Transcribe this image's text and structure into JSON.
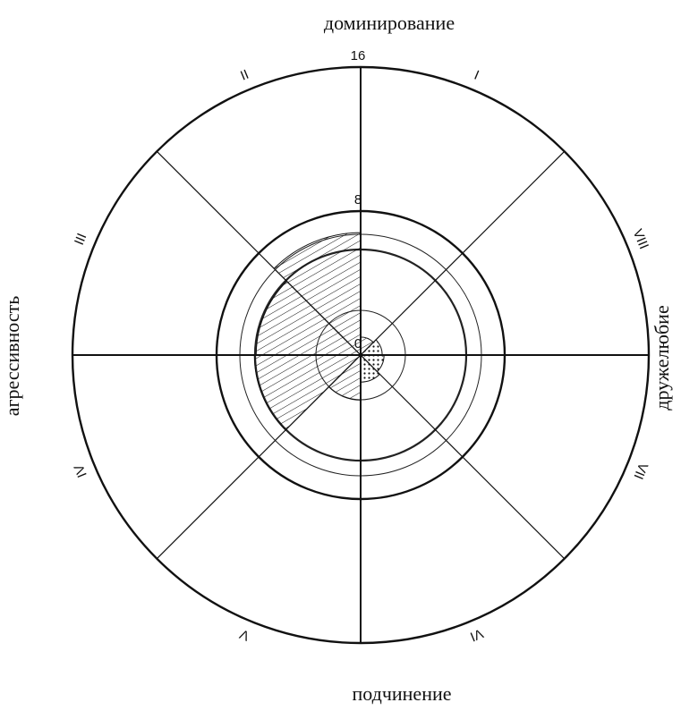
{
  "chart_data": {
    "type": "polar-sector",
    "axis_labels": {
      "top": "доминирование",
      "bottom": "подчинение",
      "left": "агрессивность",
      "right": "дружелюбие"
    },
    "categories": [
      "I",
      "II",
      "III",
      "IV",
      "V",
      "VI",
      "VII",
      "VIII"
    ],
    "values": [
      1,
      6.8,
      5.8,
      5.9,
      2.5,
      1.5,
      1.3,
      1.2
    ],
    "patterns": [
      "hatch",
      "hatch",
      "hatch",
      "hatch",
      "hatch",
      "dots",
      "dots",
      "dots"
    ],
    "color": "#111111",
    "rlim": [
      0,
      16
    ],
    "rticks": [
      0,
      8,
      16
    ]
  }
}
